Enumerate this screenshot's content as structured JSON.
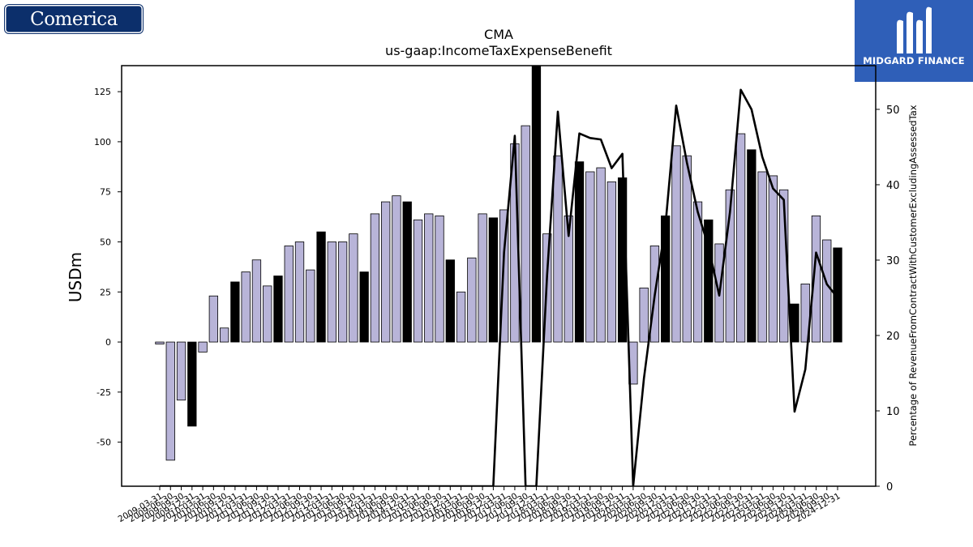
{
  "logos": {
    "left_text": "Comerica",
    "right_text": "MIDGARD FINANCE"
  },
  "chart_data": {
    "type": "bar",
    "title": "CMA",
    "subtitle": "us-gaap:IncomeTaxExpenseBenefit",
    "ylabel": "USDm",
    "y2label": "Percentage of RevenueFromContractWithCustomerExcludingAssessedTax",
    "ylim": [
      -72,
      138
    ],
    "y2lim": [
      0,
      55.8
    ],
    "yticks": [
      -50,
      -25,
      0,
      25,
      50,
      75,
      100,
      125
    ],
    "y2ticks": [
      0,
      10,
      20,
      30,
      40,
      50
    ],
    "categories": [
      "2009-03-31",
      "2009-06-30",
      "2009-09-30",
      "2009-12-31",
      "2010-03-31",
      "2010-06-30",
      "2010-09-30",
      "2010-12-31",
      "2011-03-31",
      "2011-06-30",
      "2011-09-30",
      "2011-12-31",
      "2012-03-31",
      "2012-06-30",
      "2012-09-30",
      "2012-12-31",
      "2013-03-31",
      "2013-06-30",
      "2013-09-30",
      "2013-12-31",
      "2014-03-31",
      "2014-06-30",
      "2014-09-30",
      "2014-12-31",
      "2015-03-31",
      "2015-06-30",
      "2015-09-30",
      "2015-12-31",
      "2016-03-31",
      "2016-06-30",
      "2016-09-30",
      "2016-12-31",
      "2017-03-31",
      "2017-06-30",
      "2017-09-30",
      "2017-12-31",
      "2018-03-31",
      "2018-06-30",
      "2018-09-30",
      "2018-12-31",
      "2019-03-31",
      "2019-06-30",
      "2019-09-30",
      "2019-12-31",
      "2020-03-31",
      "2020-06-30",
      "2020-09-30",
      "2020-12-31",
      "2021-03-31",
      "2021-06-30",
      "2021-09-30",
      "2021-12-31",
      "2022-03-31",
      "2022-06-30",
      "2022-09-30",
      "2022-12-31",
      "2023-03-31",
      "2023-06-30",
      "2023-09-30",
      "2023-12-31",
      "2024-03-31",
      "2024-06-30",
      "2024-09-30",
      "2024-12-31"
    ],
    "bar_values": [
      -1,
      -59,
      -29,
      -42,
      -5,
      23,
      7,
      30,
      35,
      41,
      28,
      33,
      48,
      50,
      36,
      55,
      50,
      50,
      54,
      35,
      64,
      70,
      73,
      70,
      61,
      64,
      63,
      41,
      25,
      42,
      64,
      62,
      66,
      99,
      108,
      138,
      54,
      93,
      63,
      90,
      85,
      87,
      80,
      82,
      -21,
      27,
      48,
      63,
      98,
      93,
      70,
      61,
      49,
      76,
      104,
      96,
      85,
      83,
      76,
      19,
      29,
      63,
      51,
      47
    ],
    "bar_highlight": [
      false,
      false,
      false,
      true,
      false,
      false,
      false,
      true,
      false,
      false,
      false,
      true,
      false,
      false,
      false,
      true,
      false,
      false,
      false,
      true,
      false,
      false,
      false,
      true,
      false,
      false,
      false,
      true,
      false,
      false,
      false,
      true,
      false,
      false,
      false,
      true,
      false,
      false,
      false,
      true,
      false,
      false,
      false,
      true,
      false,
      false,
      false,
      true,
      false,
      false,
      false,
      true,
      false,
      false,
      false,
      true,
      false,
      false,
      false,
      true,
      false,
      false,
      false,
      true
    ],
    "line_values": [
      0,
      0,
      0,
      0,
      0,
      0,
      0,
      0,
      0,
      0,
      0,
      0,
      0,
      0,
      0,
      0,
      0,
      0,
      0,
      0,
      0,
      0,
      0,
      0,
      0,
      0,
      0,
      0,
      0,
      0,
      0,
      0,
      31,
      46.5,
      0,
      0,
      28,
      49.7,
      33.2,
      46.8,
      46.2,
      46,
      42.2,
      44.1,
      0,
      14.3,
      25.3,
      34.6,
      50.5,
      42.9,
      36.4,
      31.8,
      25.3,
      36.4,
      52.6,
      50,
      43.7,
      39.5,
      38,
      9.9,
      15.5,
      31,
      26.8,
      25
    ],
    "colors": {
      "bar": "#b8b4d8",
      "bar_highlight": "#000000",
      "line": "#000000"
    }
  }
}
